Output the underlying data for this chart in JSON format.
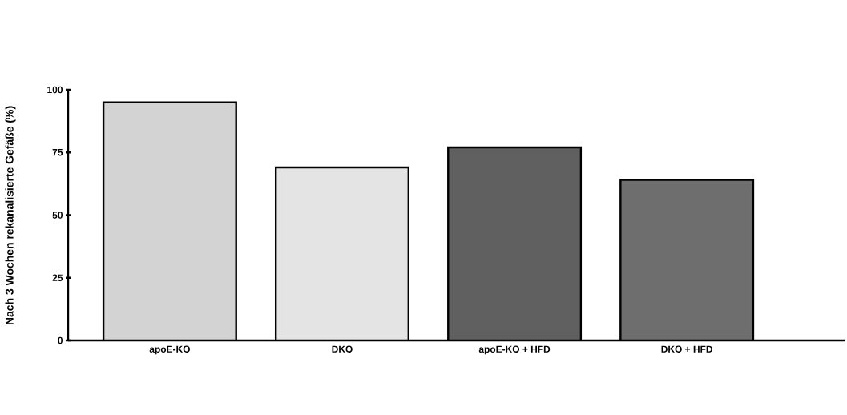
{
  "chart_data": {
    "type": "bar",
    "ylabel": "Nach 3 Wochen rekanalisierte Gefäße (%)",
    "categories": [
      "apoE-KO",
      "DKO",
      "apoE-KO + HFD",
      "DKO + HFD"
    ],
    "values": [
      95,
      69,
      77,
      64
    ],
    "colors": [
      "#d3d3d3",
      "#e4e4e4",
      "#606060",
      "#6e6e6e"
    ],
    "ylim": [
      0,
      100
    ],
    "yticks": [
      0,
      25,
      50,
      75,
      100
    ],
    "grid": false
  }
}
